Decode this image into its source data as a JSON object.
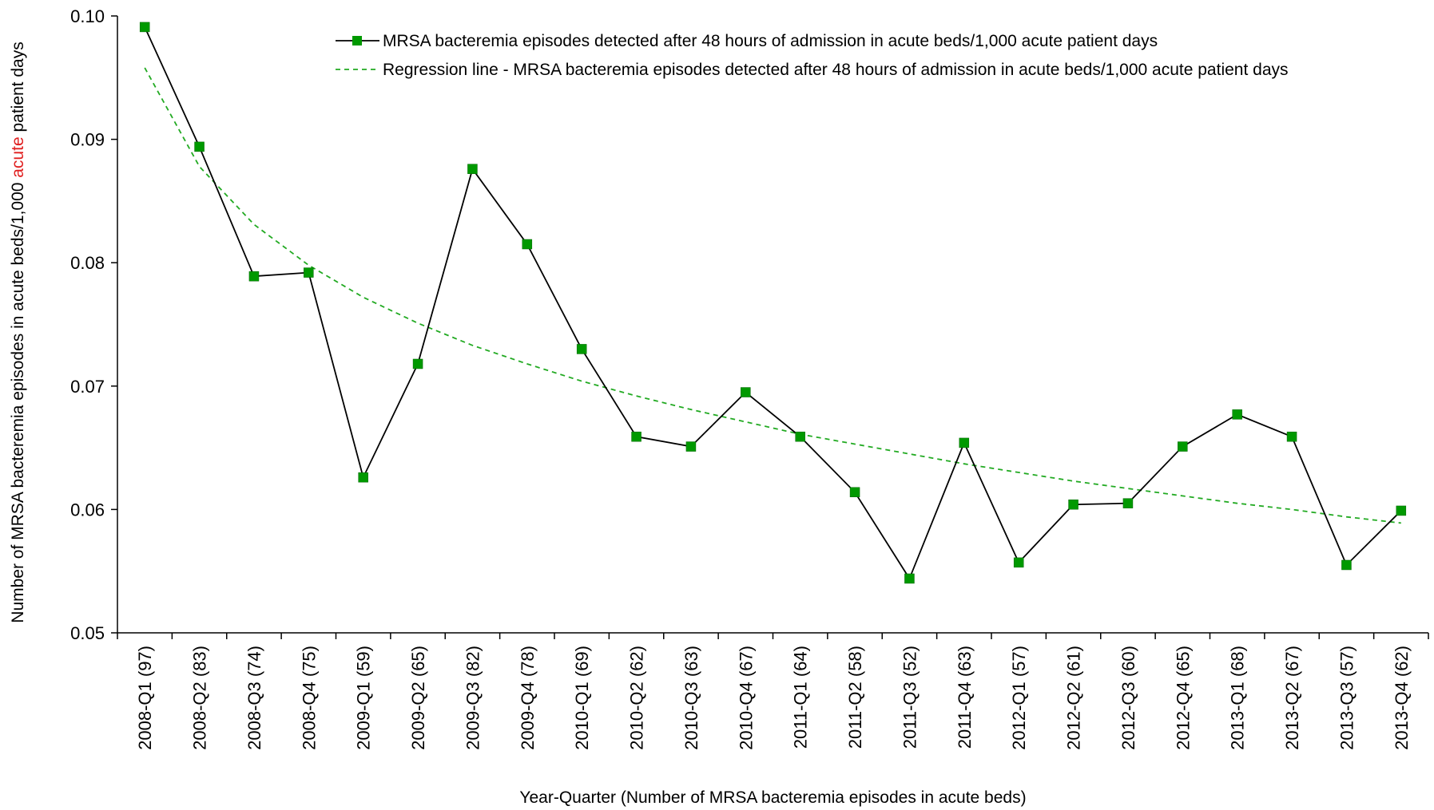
{
  "chart_data": {
    "type": "line",
    "xlabel": "Year-Quarter (Number of MRSA bacteremia episodes in acute beds)",
    "ylabel_parts": [
      {
        "text": "Number of MRSA bacteremia episodes in acute beds/1,000 ",
        "color": "#000000"
      },
      {
        "text": "acute",
        "color": "#e02020"
      },
      {
        "text": " patient days",
        "color": "#000000"
      }
    ],
    "ylim": [
      0.05,
      0.1
    ],
    "yticks": [
      "0.05",
      "0.06",
      "0.07",
      "0.08",
      "0.09",
      "0.10"
    ],
    "grid": false,
    "legend_position": "top-right",
    "categories": [
      "2008-Q1 (97)",
      "2008-Q2 (83)",
      "2008-Q3 (74)",
      "2008-Q4 (75)",
      "2009-Q1 (59)",
      "2009-Q2 (65)",
      "2009-Q3 (82)",
      "2009-Q4 (78)",
      "2010-Q1 (69)",
      "2010-Q2 (62)",
      "2010-Q3 (63)",
      "2010-Q4 (67)",
      "2011-Q1 (64)",
      "2011-Q2 (58)",
      "2011-Q3 (52)",
      "2011-Q4 (63)",
      "2012-Q1 (57)",
      "2012-Q2 (61)",
      "2012-Q3 (60)",
      "2012-Q4 (65)",
      "2013-Q1 (68)",
      "2013-Q2 (67)",
      "2013-Q3 (57)",
      "2013-Q4 (62)"
    ],
    "series": [
      {
        "name": "MRSA bacteremia episodes detected after 48 hours of admission in acute beds/1,000 acute patient days",
        "style": "solid-line-square-markers",
        "line_color": "#000000",
        "marker_color": "#009900",
        "values": [
          0.0991,
          0.0894,
          0.0789,
          0.0792,
          0.0626,
          0.0718,
          0.0876,
          0.0815,
          0.073,
          0.0659,
          0.0651,
          0.0695,
          0.0659,
          0.0614,
          0.0544,
          0.0654,
          0.0557,
          0.0604,
          0.0605,
          0.0651,
          0.0677,
          0.0659,
          0.0555,
          0.0599
        ]
      },
      {
        "name": "Regression line - MRSA bacteremia episodes detected after 48 hours of admission in acute beds/1,000 acute patient days",
        "style": "dashed-line",
        "line_color": "#22aa22",
        "values": [
          0.0958,
          0.0878,
          0.0831,
          0.0798,
          0.0772,
          0.0751,
          0.0733,
          0.0718,
          0.0704,
          0.0692,
          0.0681,
          0.0671,
          0.0661,
          0.0653,
          0.0645,
          0.0637,
          0.063,
          0.0623,
          0.0617,
          0.0611,
          0.0605,
          0.06,
          0.0594,
          0.0589
        ]
      }
    ]
  }
}
